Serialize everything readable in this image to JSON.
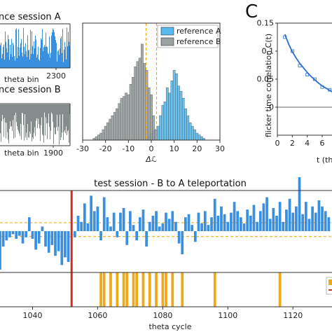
{
  "panel_letter": "C",
  "chart_data": [
    {
      "type": "bar",
      "title": "nce session A",
      "xlabel": "theta bin",
      "xticks": [
        "2300"
      ],
      "color": "#3a8fde"
    },
    {
      "type": "bar",
      "title": "nce session B",
      "xlabel": "theta bin",
      "xticks": [
        "1900"
      ],
      "color": "#858c8c"
    },
    {
      "type": "bar",
      "xlabel": "Δℒ",
      "xlim": [
        -30,
        30
      ],
      "xticks": [
        "-30",
        "-20",
        "-10",
        "0",
        "10",
        "20",
        "30"
      ],
      "series": [
        {
          "name": "reference A",
          "color": "#58b9ec",
          "centers": [
            -2,
            -1,
            0,
            1,
            2,
            3,
            4,
            5,
            6,
            7,
            8,
            9,
            10,
            11,
            12,
            13,
            14,
            15,
            16,
            17,
            18,
            19,
            20,
            21,
            22,
            23
          ],
          "counts": [
            1,
            3,
            4,
            5,
            6,
            8,
            14,
            20,
            22,
            30,
            27,
            34,
            40,
            38,
            31,
            28,
            24,
            18,
            14,
            10,
            8,
            6,
            4,
            3,
            2,
            1
          ]
        },
        {
          "name": "reference B",
          "color": "#9aa1a1",
          "centers": [
            -25,
            -24,
            -23,
            -22,
            -21,
            -20,
            -19,
            -18,
            -17,
            -16,
            -15,
            -14,
            -13,
            -12,
            -11,
            -10,
            -9,
            -8,
            -7,
            -6,
            -5,
            -4,
            -3,
            -2,
            -1,
            0,
            1,
            2
          ],
          "counts": [
            1,
            2,
            3,
            4,
            6,
            8,
            10,
            12,
            14,
            16,
            18,
            21,
            24,
            25,
            27,
            26,
            32,
            36,
            42,
            45,
            47,
            55,
            44,
            40,
            30,
            26,
            14,
            6
          ]
        }
      ],
      "threshold_lines": [
        -2.3,
        2.3
      ]
    },
    {
      "type": "scatter",
      "ylabel": "flicker time correlation C(t)",
      "xlabel": "t (th",
      "yticks": [
        "0",
        "0.05",
        "0.1",
        "0.15"
      ],
      "xticks": [
        "0",
        "2",
        "4",
        "6",
        "8"
      ],
      "ylim": [
        -0.05,
        0.15
      ],
      "xlim": [
        0,
        9
      ],
      "points": {
        "x": [
          1,
          2,
          3,
          4,
          5,
          6,
          7,
          8
        ],
        "y": [
          0.125,
          0.1,
          0.074,
          0.058,
          0.05,
          0.036,
          0.031,
          0.024
        ]
      },
      "fit": {
        "x": [
          1,
          1.5,
          2,
          2.5,
          3,
          3.5,
          4,
          4.5,
          5,
          5.5,
          6,
          6.5,
          7,
          7.5,
          8,
          8.5,
          9
        ],
        "y": [
          0.13,
          0.113,
          0.099,
          0.088,
          0.078,
          0.07,
          0.062,
          0.055,
          0.049,
          0.043,
          0.038,
          0.034,
          0.03,
          0.026,
          0.023,
          0.02,
          0.018
        ]
      },
      "color": "#2a6fd0"
    },
    {
      "type": "bar",
      "title": "test session - B to A teleportation",
      "xlabel": "theta cycle",
      "xlim": [
        1030,
        1132
      ],
      "xticks": [
        "1040",
        "1060",
        "1080",
        "1100",
        "1120"
      ],
      "teleport_at": 1052,
      "threshold_lines": [
        0.55,
        -0.35
      ],
      "bars": {
        "x": [
          1030,
          1031,
          1032,
          1033,
          1034,
          1035,
          1036,
          1037,
          1038,
          1039,
          1040,
          1041,
          1042,
          1043,
          1044,
          1045,
          1046,
          1047,
          1048,
          1049,
          1050,
          1051,
          1053,
          1054,
          1055,
          1056,
          1057,
          1058,
          1059,
          1060,
          1061,
          1062,
          1063,
          1064,
          1065,
          1066,
          1067,
          1068,
          1069,
          1070,
          1071,
          1072,
          1073,
          1074,
          1075,
          1076,
          1077,
          1078,
          1079,
          1080,
          1081,
          1082,
          1083,
          1084,
          1085,
          1086,
          1087,
          1088,
          1089,
          1090,
          1091,
          1092,
          1093,
          1094,
          1095,
          1096,
          1097,
          1098,
          1099,
          1100,
          1101,
          1102,
          1103,
          1104,
          1105,
          1106,
          1107,
          1108,
          1109,
          1110,
          1111,
          1112,
          1113,
          1114,
          1115,
          1116,
          1117,
          1118,
          1119,
          1120,
          1121,
          1122,
          1123,
          1124,
          1125,
          1126,
          1127,
          1128,
          1129,
          1130,
          1131
        ],
        "y": [
          -2.5,
          -1.0,
          -0.6,
          -0.4,
          -0.2,
          -0.5,
          -0.3,
          -0.8,
          -0.4,
          0.9,
          -0.5,
          -1.2,
          -0.8,
          0.3,
          -1.0,
          -1.4,
          -0.9,
          -1.6,
          -1.3,
          -2.2,
          -1.7,
          -2.0,
          -0.4,
          1.0,
          0.6,
          1.8,
          0.5,
          2.3,
          1.3,
          1.6,
          -0.6,
          2.2,
          0.9,
          0.3,
          1.2,
          -0.4,
          1.2,
          1.5,
          -0.9,
          1.3,
          0.4,
          -0.6,
          0.9,
          1.4,
          -1.0,
          0.6,
          1.0,
          1.3,
          0.3,
          0.5,
          1.2,
          0.8,
          1.3,
          0.6,
          -0.8,
          -1.5,
          0.9,
          1.1,
          0.4,
          -0.7,
          1.2,
          0.5,
          1.3,
          0.4,
          0.9,
          2.1,
          1.0,
          1.6,
          1.1,
          0.6,
          1.2,
          1.9,
          1.3,
          0.9,
          0.5,
          1.4,
          1.0,
          1.7,
          0.6,
          1.3,
          1.8,
          2.2,
          0.8,
          1.5,
          1.0,
          1.9,
          0.6,
          1.4,
          2.1,
          1.2,
          1.6,
          3.5,
          1.1,
          1.9,
          0.8,
          1.6,
          1.2,
          2.0,
          1.6,
          1.3,
          0.9
        ]
      },
      "events": [
        1061,
        1062,
        1064,
        1066,
        1068,
        1069,
        1071,
        1072,
        1074,
        1076,
        1078,
        1080,
        1081,
        1083,
        1086,
        1096,
        1116
      ],
      "event_color": "#f0a818"
    }
  ]
}
